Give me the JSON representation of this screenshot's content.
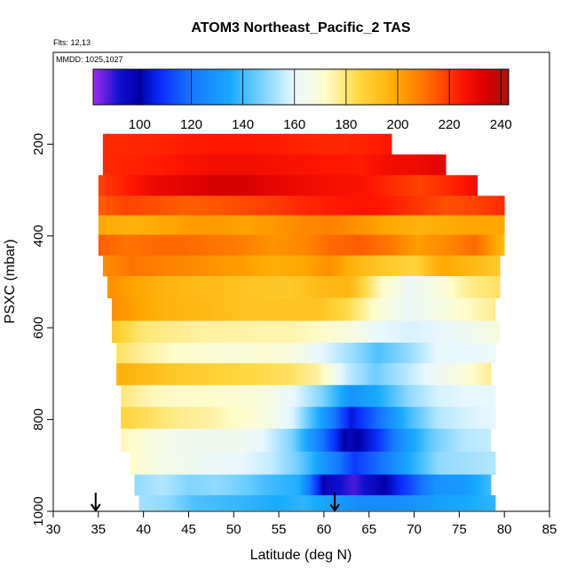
{
  "chart_data": {
    "type": "heatmap",
    "title": "ATOM3 Northeast_Pacific_2 TAS",
    "subtitle_lines": [
      "Flts: 12,13",
      "MMDD: 1025,1027"
    ],
    "xlabel": "Latitude (deg N)",
    "ylabel": "PSXC (mbar)",
    "xlim": [
      30,
      85
    ],
    "ylim": [
      1000,
      0
    ],
    "x_ticks": [
      30,
      35,
      40,
      45,
      50,
      55,
      60,
      65,
      70,
      75,
      80,
      85
    ],
    "y_ticks": [
      200,
      400,
      600,
      800,
      1000
    ],
    "colorbar": {
      "range": [
        82,
        243
      ],
      "ticks": [
        100,
        120,
        140,
        160,
        180,
        200,
        220,
        240
      ],
      "stops": [
        {
          "v": 82,
          "c": "#a52cf0"
        },
        {
          "v": 92,
          "c": "#1010d0"
        },
        {
          "v": 100,
          "c": "#0000a8"
        },
        {
          "v": 108,
          "c": "#0a2dff"
        },
        {
          "v": 120,
          "c": "#1677ff"
        },
        {
          "v": 135,
          "c": "#17aaff"
        },
        {
          "v": 148,
          "c": "#7fd4ff"
        },
        {
          "v": 160,
          "c": "#e8f8ff"
        },
        {
          "v": 172,
          "c": "#fffccb"
        },
        {
          "v": 185,
          "c": "#ffd840"
        },
        {
          "v": 200,
          "c": "#ffa800"
        },
        {
          "v": 212,
          "c": "#ff6a00"
        },
        {
          "v": 225,
          "c": "#ff1500"
        },
        {
          "v": 234,
          "c": "#d80000"
        },
        {
          "v": 243,
          "c": "#a51515"
        }
      ]
    },
    "layers": [
      {
        "p": 200,
        "lat": [
          35.5,
          67.5
        ],
        "v": [
          222,
          222,
          223,
          224,
          225,
          225,
          224,
          223,
          222,
          223,
          225
        ]
      },
      {
        "p": 245,
        "lat": [
          35.5,
          73.5
        ],
        "v": [
          222,
          223,
          224,
          226,
          228,
          228,
          227,
          226,
          225,
          224,
          228,
          229,
          232
        ]
      },
      {
        "p": 290,
        "lat": [
          35,
          77
        ],
        "v": [
          218,
          224,
          230,
          232,
          234,
          234,
          231,
          229,
          227,
          226,
          222,
          218,
          222,
          228
        ]
      },
      {
        "p": 335,
        "lat": [
          35,
          80
        ],
        "v": [
          214,
          218,
          216,
          214,
          215,
          217,
          219,
          222,
          224,
          226,
          224,
          220,
          216,
          218,
          222
        ]
      },
      {
        "p": 375,
        "lat": [
          35,
          80
        ],
        "v": [
          200,
          197,
          199,
          202,
          203,
          201,
          203,
          206,
          208,
          204,
          200,
          197,
          199,
          201,
          200
        ]
      },
      {
        "p": 420,
        "lat": [
          35,
          80
        ],
        "v": [
          214,
          210,
          212,
          212,
          210,
          208,
          204,
          206,
          212,
          214,
          210,
          202,
          206,
          212,
          195
        ]
      },
      {
        "p": 465,
        "lat": [
          35.5,
          79.5
        ],
        "v": [
          205,
          210,
          208,
          206,
          204,
          202,
          198,
          200,
          205,
          195,
          190,
          186,
          200,
          195,
          190
        ]
      },
      {
        "p": 510,
        "lat": [
          36,
          79.5
        ],
        "v": [
          205,
          200,
          196,
          194,
          193,
          191,
          190,
          194,
          196,
          174,
          162,
          168,
          178,
          182
        ]
      },
      {
        "p": 560,
        "lat": [
          36.5,
          79
        ],
        "v": [
          205,
          200,
          196,
          195,
          193,
          192,
          192,
          192,
          184,
          170,
          162,
          166,
          172,
          178
        ]
      },
      {
        "p": 610,
        "lat": [
          36.5,
          79.5
        ],
        "v": [
          190,
          180,
          178,
          176,
          176,
          175,
          175,
          172,
          168,
          160,
          158,
          160,
          164,
          168
        ]
      },
      {
        "p": 655,
        "lat": [
          37,
          79
        ],
        "v": [
          182,
          176,
          172,
          170,
          168,
          170,
          168,
          160,
          152,
          142,
          150,
          160,
          160,
          162
        ]
      },
      {
        "p": 700,
        "lat": [
          37,
          78.5
        ],
        "v": [
          198,
          194,
          190,
          188,
          186,
          184,
          182,
          176,
          156,
          146,
          154,
          162,
          168,
          178
        ]
      },
      {
        "p": 750,
        "lat": [
          37.5,
          79
        ],
        "v": [
          180,
          174,
          172,
          172,
          170,
          168,
          160,
          148,
          128,
          136,
          150,
          158,
          160,
          160
        ]
      },
      {
        "p": 795,
        "lat": [
          37.5,
          79
        ],
        "v": [
          186,
          182,
          178,
          176,
          172,
          168,
          158,
          132,
          104,
          120,
          140,
          154,
          158,
          160
        ]
      },
      {
        "p": 845,
        "lat": [
          37.5,
          78.5
        ],
        "v": [
          174,
          168,
          164,
          164,
          164,
          160,
          148,
          122,
          96,
          108,
          130,
          146,
          154,
          156
        ]
      },
      {
        "p": 895,
        "lat": [
          38.5,
          79
        ],
        "v": [
          172,
          166,
          164,
          162,
          160,
          156,
          146,
          128,
          110,
          120,
          136,
          150,
          152,
          154
        ]
      },
      {
        "p": 945,
        "lat": [
          39,
          78.5
        ],
        "v": [
          150,
          154,
          148,
          150,
          146,
          140,
          136,
          96,
          88,
          98,
          112,
          128,
          130,
          140
        ]
      },
      {
        "p": 985,
        "lat": [
          39.5,
          79
        ],
        "v": [
          152,
          150,
          142,
          140,
          138,
          135,
          138,
          132,
          126,
          126,
          128,
          132,
          135,
          138
        ]
      }
    ],
    "markers": [
      {
        "lat": 34.7,
        "p": 1010
      },
      {
        "lat": 61.2,
        "p": 1010
      }
    ]
  }
}
